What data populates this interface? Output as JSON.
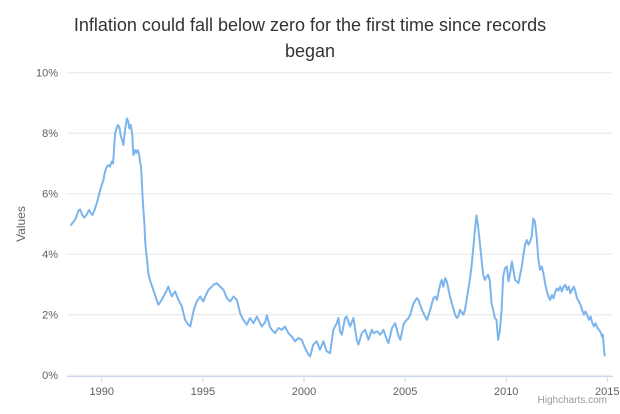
{
  "header": {
    "title": "Inflation could fall below zero for the first time since records began"
  },
  "credits": {
    "label": "Highcharts.com"
  },
  "colors": {
    "series": "#7cb5ec",
    "grid": "#e6e6e6",
    "axis_line": "#ccd6eb",
    "tick": "#ccd6eb",
    "title_text": "#333333",
    "axis_text": "#606060",
    "credits_text": "#999999",
    "background": "#ffffff"
  },
  "chart_data": {
    "type": "line",
    "title": "Inflation could fall below zero for the first time since records began",
    "xlabel": "",
    "ylabel": "Values",
    "legend_position": "none",
    "grid": "horizontal-only",
    "xlim": [
      1988.28,
      2015.23
    ],
    "ylim": [
      0,
      10
    ],
    "xticks": [
      {
        "v": 1990,
        "label": "1990"
      },
      {
        "v": 1995,
        "label": "1995"
      },
      {
        "v": 2000,
        "label": "2000"
      },
      {
        "v": 2005,
        "label": "2005"
      },
      {
        "v": 2010,
        "label": "2010"
      },
      {
        "v": 2015,
        "label": "2015"
      }
    ],
    "yticks": [
      {
        "v": 0,
        "label": "0%"
      },
      {
        "v": 2,
        "label": "2%"
      },
      {
        "v": 4,
        "label": "4%"
      },
      {
        "v": 6,
        "label": "6%"
      },
      {
        "v": 8,
        "label": "8%"
      },
      {
        "v": 10,
        "label": "10%"
      }
    ],
    "series": [
      {
        "name": "Values",
        "color": "#7cb5ec",
        "points": [
          [
            1988.48,
            4.97
          ],
          [
            1988.6,
            5.07
          ],
          [
            1988.71,
            5.18
          ],
          [
            1988.84,
            5.43
          ],
          [
            1988.93,
            5.48
          ],
          [
            1989.04,
            5.29
          ],
          [
            1989.14,
            5.21
          ],
          [
            1989.26,
            5.32
          ],
          [
            1989.37,
            5.46
          ],
          [
            1989.47,
            5.35
          ],
          [
            1989.54,
            5.3
          ],
          [
            1989.64,
            5.46
          ],
          [
            1989.75,
            5.68
          ],
          [
            1989.84,
            5.9
          ],
          [
            1989.92,
            6.12
          ],
          [
            1990.0,
            6.29
          ],
          [
            1990.08,
            6.45
          ],
          [
            1990.16,
            6.73
          ],
          [
            1990.25,
            6.89
          ],
          [
            1990.33,
            6.95
          ],
          [
            1990.4,
            6.89
          ],
          [
            1990.49,
            7.06
          ],
          [
            1990.56,
            7.0
          ],
          [
            1990.61,
            7.5
          ],
          [
            1990.66,
            7.99
          ],
          [
            1990.79,
            8.27
          ],
          [
            1990.86,
            8.22
          ],
          [
            1990.95,
            7.89
          ],
          [
            1991.07,
            7.61
          ],
          [
            1991.15,
            8.11
          ],
          [
            1991.24,
            8.49
          ],
          [
            1991.31,
            8.38
          ],
          [
            1991.36,
            8.16
          ],
          [
            1991.43,
            8.27
          ],
          [
            1991.51,
            7.94
          ],
          [
            1991.56,
            7.28
          ],
          [
            1991.65,
            7.44
          ],
          [
            1991.7,
            7.35
          ],
          [
            1991.78,
            7.44
          ],
          [
            1991.85,
            7.28
          ],
          [
            1991.89,
            7.06
          ],
          [
            1991.94,
            6.89
          ],
          [
            1991.98,
            6.45
          ],
          [
            1992.01,
            6.01
          ],
          [
            1992.06,
            5.46
          ],
          [
            1992.11,
            4.97
          ],
          [
            1992.14,
            4.47
          ],
          [
            1992.19,
            4.08
          ],
          [
            1992.24,
            3.81
          ],
          [
            1992.3,
            3.37
          ],
          [
            1992.4,
            3.1
          ],
          [
            1992.55,
            2.82
          ],
          [
            1992.68,
            2.55
          ],
          [
            1992.8,
            2.33
          ],
          [
            1992.93,
            2.45
          ],
          [
            1993.05,
            2.6
          ],
          [
            1993.17,
            2.75
          ],
          [
            1993.29,
            2.93
          ],
          [
            1993.38,
            2.75
          ],
          [
            1993.46,
            2.6
          ],
          [
            1993.55,
            2.7
          ],
          [
            1993.63,
            2.77
          ],
          [
            1993.71,
            2.62
          ],
          [
            1993.79,
            2.49
          ],
          [
            1993.88,
            2.38
          ],
          [
            1993.96,
            2.27
          ],
          [
            1994.04,
            2.05
          ],
          [
            1994.12,
            1.83
          ],
          [
            1994.25,
            1.7
          ],
          [
            1994.37,
            1.61
          ],
          [
            1994.45,
            1.85
          ],
          [
            1994.53,
            2.11
          ],
          [
            1994.62,
            2.3
          ],
          [
            1994.7,
            2.44
          ],
          [
            1994.78,
            2.52
          ],
          [
            1994.86,
            2.6
          ],
          [
            1994.94,
            2.52
          ],
          [
            1995.02,
            2.44
          ],
          [
            1995.15,
            2.65
          ],
          [
            1995.27,
            2.82
          ],
          [
            1995.4,
            2.9
          ],
          [
            1995.52,
            2.99
          ],
          [
            1995.69,
            3.04
          ],
          [
            1995.85,
            2.93
          ],
          [
            1996.02,
            2.82
          ],
          [
            1996.18,
            2.55
          ],
          [
            1996.35,
            2.44
          ],
          [
            1996.51,
            2.6
          ],
          [
            1996.68,
            2.49
          ],
          [
            1996.84,
            2.05
          ],
          [
            1997.0,
            1.83
          ],
          [
            1997.17,
            1.67
          ],
          [
            1997.33,
            1.89
          ],
          [
            1997.5,
            1.72
          ],
          [
            1997.67,
            1.94
          ],
          [
            1997.91,
            1.61
          ],
          [
            1998.08,
            1.75
          ],
          [
            1998.16,
            1.98
          ],
          [
            1998.32,
            1.6
          ],
          [
            1998.41,
            1.5
          ],
          [
            1998.57,
            1.39
          ],
          [
            1998.73,
            1.56
          ],
          [
            1998.9,
            1.5
          ],
          [
            1999.06,
            1.61
          ],
          [
            1999.23,
            1.39
          ],
          [
            1999.39,
            1.28
          ],
          [
            1999.56,
            1.12
          ],
          [
            1999.72,
            1.23
          ],
          [
            1999.89,
            1.17
          ],
          [
            2000.05,
            0.9
          ],
          [
            2000.22,
            0.68
          ],
          [
            2000.3,
            0.62
          ],
          [
            2000.46,
            1.01
          ],
          [
            2000.63,
            1.12
          ],
          [
            2000.79,
            0.84
          ],
          [
            2000.96,
            1.12
          ],
          [
            2001.12,
            0.79
          ],
          [
            2001.29,
            0.73
          ],
          [
            2001.45,
            1.5
          ],
          [
            2001.62,
            1.72
          ],
          [
            2001.7,
            1.89
          ],
          [
            2001.78,
            1.45
          ],
          [
            2001.87,
            1.34
          ],
          [
            2002.03,
            1.89
          ],
          [
            2002.11,
            1.94
          ],
          [
            2002.28,
            1.61
          ],
          [
            2002.44,
            1.89
          ],
          [
            2002.61,
            1.17
          ],
          [
            2002.69,
            1.01
          ],
          [
            2002.86,
            1.39
          ],
          [
            2003.02,
            1.5
          ],
          [
            2003.19,
            1.17
          ],
          [
            2003.35,
            1.5
          ],
          [
            2003.44,
            1.39
          ],
          [
            2003.61,
            1.45
          ],
          [
            2003.77,
            1.34
          ],
          [
            2003.93,
            1.5
          ],
          [
            2004.1,
            1.17
          ],
          [
            2004.18,
            1.06
          ],
          [
            2004.35,
            1.56
          ],
          [
            2004.51,
            1.72
          ],
          [
            2004.68,
            1.28
          ],
          [
            2004.76,
            1.17
          ],
          [
            2004.92,
            1.67
          ],
          [
            2005.01,
            1.78
          ],
          [
            2005.17,
            1.89
          ],
          [
            2005.25,
            2.0
          ],
          [
            2005.42,
            2.38
          ],
          [
            2005.58,
            2.55
          ],
          [
            2005.66,
            2.49
          ],
          [
            2005.83,
            2.16
          ],
          [
            2005.99,
            1.94
          ],
          [
            2006.08,
            1.83
          ],
          [
            2006.24,
            2.16
          ],
          [
            2006.4,
            2.55
          ],
          [
            2006.49,
            2.6
          ],
          [
            2006.57,
            2.49
          ],
          [
            2006.73,
            2.99
          ],
          [
            2006.81,
            3.15
          ],
          [
            2006.89,
            2.93
          ],
          [
            2006.98,
            3.21
          ],
          [
            2007.06,
            3.1
          ],
          [
            2007.22,
            2.6
          ],
          [
            2007.31,
            2.38
          ],
          [
            2007.47,
            2.0
          ],
          [
            2007.55,
            1.89
          ],
          [
            2007.63,
            1.94
          ],
          [
            2007.71,
            2.16
          ],
          [
            2007.88,
            2.0
          ],
          [
            2007.96,
            2.16
          ],
          [
            2008.04,
            2.49
          ],
          [
            2008.2,
            3.15
          ],
          [
            2008.28,
            3.59
          ],
          [
            2008.36,
            4.14
          ],
          [
            2008.45,
            4.8
          ],
          [
            2008.53,
            5.28
          ],
          [
            2008.61,
            4.91
          ],
          [
            2008.7,
            4.36
          ],
          [
            2008.78,
            3.81
          ],
          [
            2008.86,
            3.32
          ],
          [
            2008.94,
            3.15
          ],
          [
            2009.03,
            3.26
          ],
          [
            2009.11,
            3.32
          ],
          [
            2009.19,
            3.1
          ],
          [
            2009.27,
            2.38
          ],
          [
            2009.35,
            2.16
          ],
          [
            2009.44,
            1.89
          ],
          [
            2009.52,
            1.83
          ],
          [
            2009.6,
            1.17
          ],
          [
            2009.68,
            1.45
          ],
          [
            2009.77,
            2.16
          ],
          [
            2009.85,
            3.26
          ],
          [
            2009.94,
            3.54
          ],
          [
            2010.03,
            3.59
          ],
          [
            2010.11,
            3.1
          ],
          [
            2010.19,
            3.37
          ],
          [
            2010.28,
            3.76
          ],
          [
            2010.44,
            3.15
          ],
          [
            2010.6,
            3.04
          ],
          [
            2010.77,
            3.59
          ],
          [
            2010.85,
            3.98
          ],
          [
            2010.93,
            4.31
          ],
          [
            2011.02,
            4.47
          ],
          [
            2011.1,
            4.31
          ],
          [
            2011.18,
            4.42
          ],
          [
            2011.26,
            4.59
          ],
          [
            2011.34,
            5.18
          ],
          [
            2011.42,
            5.07
          ],
          [
            2011.51,
            4.52
          ],
          [
            2011.59,
            3.81
          ],
          [
            2011.67,
            3.48
          ],
          [
            2011.76,
            3.59
          ],
          [
            2011.84,
            3.37
          ],
          [
            2011.92,
            3.04
          ],
          [
            2012.01,
            2.76
          ],
          [
            2012.09,
            2.6
          ],
          [
            2012.17,
            2.49
          ],
          [
            2012.26,
            2.65
          ],
          [
            2012.34,
            2.54
          ],
          [
            2012.42,
            2.75
          ],
          [
            2012.51,
            2.87
          ],
          [
            2012.59,
            2.8
          ],
          [
            2012.67,
            2.93
          ],
          [
            2012.75,
            2.77
          ],
          [
            2012.84,
            2.93
          ],
          [
            2012.92,
            2.99
          ],
          [
            2013.0,
            2.82
          ],
          [
            2013.09,
            2.93
          ],
          [
            2013.17,
            2.71
          ],
          [
            2013.25,
            2.82
          ],
          [
            2013.34,
            2.93
          ],
          [
            2013.42,
            2.77
          ],
          [
            2013.5,
            2.55
          ],
          [
            2013.59,
            2.44
          ],
          [
            2013.67,
            2.33
          ],
          [
            2013.75,
            2.16
          ],
          [
            2013.84,
            2.0
          ],
          [
            2013.92,
            2.11
          ],
          [
            2014.0,
            2.0
          ],
          [
            2014.09,
            1.83
          ],
          [
            2014.17,
            1.94
          ],
          [
            2014.26,
            1.72
          ],
          [
            2014.34,
            1.61
          ],
          [
            2014.42,
            1.72
          ],
          [
            2014.51,
            1.56
          ],
          [
            2014.59,
            1.5
          ],
          [
            2014.68,
            1.4
          ],
          [
            2014.73,
            1.28
          ],
          [
            2014.78,
            1.34
          ],
          [
            2014.81,
            1.06
          ],
          [
            2014.84,
            0.8
          ],
          [
            2014.87,
            0.65
          ]
        ]
      }
    ]
  }
}
